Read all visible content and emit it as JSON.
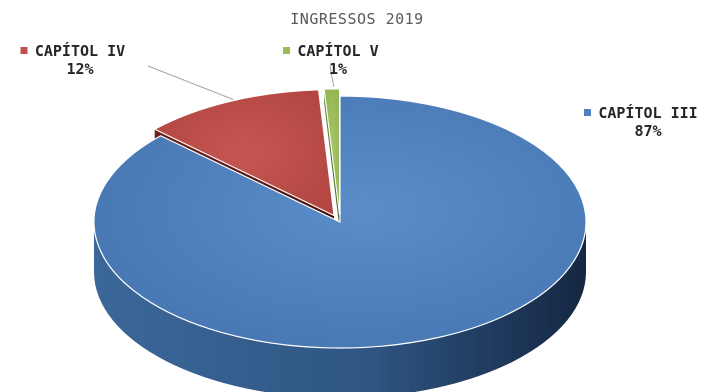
{
  "chart_data": {
    "type": "pie",
    "title": "INGRESSOS 2019",
    "style": "3d-exploded",
    "slices": [
      {
        "label": "CAPÍTOL III",
        "value": 87,
        "percent_label": "87%",
        "color": "#4F81BD"
      },
      {
        "label": "CAPÍTOL IV",
        "value": 12,
        "percent_label": "12%",
        "color": "#C0504D"
      },
      {
        "label": "CAPÍTOL V",
        "value": 1,
        "percent_label": "1%",
        "color": "#9BBB59"
      }
    ],
    "legend": "none",
    "data_labels": "outside-with-leader-lines"
  }
}
